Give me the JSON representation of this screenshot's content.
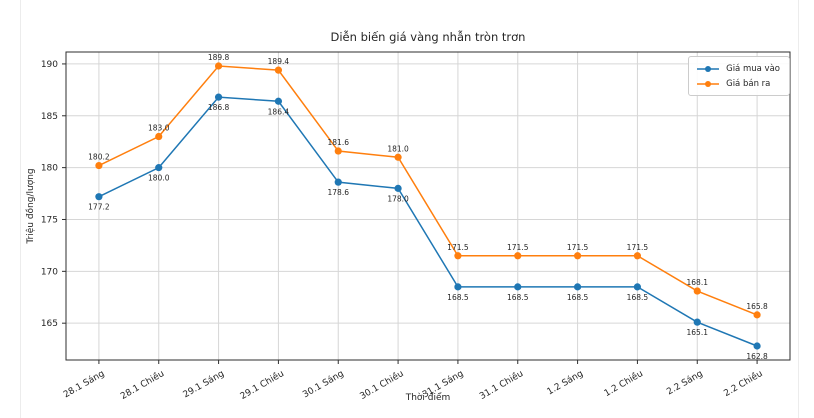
{
  "chart_data": {
    "type": "line",
    "title": "Diễn biến giá vàng nhẫn tròn trơn",
    "xlabel": "Thời điểm",
    "ylabel": "Triệu đồng/lượng",
    "categories": [
      "28.1 Sáng",
      "28.1 Chiều",
      "29.1 Sáng",
      "29.1 Chiều",
      "30.1 Sáng",
      "30.1 Chiều",
      "31.1 Sáng",
      "31.1 Chiều",
      "1.2 Sáng",
      "1.2 Chiều",
      "2.2 Sáng",
      "2.2 Chiều"
    ],
    "series": [
      {
        "name": "Giá mua vào",
        "color": "#1f77b4",
        "values": [
          177.2,
          180.0,
          186.8,
          186.4,
          178.6,
          178.0,
          168.5,
          168.5,
          168.5,
          168.5,
          165.1,
          162.8
        ],
        "label_position": "below"
      },
      {
        "name": "Giá bán ra",
        "color": "#ff7f0e",
        "values": [
          180.2,
          183.0,
          189.8,
          189.4,
          181.6,
          181.0,
          171.5,
          171.5,
          171.5,
          171.5,
          168.1,
          165.8
        ],
        "label_position": "above"
      }
    ],
    "ylim": [
      161.45,
      191.15
    ],
    "yticks": [
      165,
      170,
      175,
      180,
      185,
      190
    ],
    "grid": true,
    "legend_position": "upper right",
    "value_label_decimals": 1,
    "colors": {
      "grid": "#d6d6d6",
      "spine": "#2e2e2e",
      "tick_text": "#262626"
    }
  }
}
